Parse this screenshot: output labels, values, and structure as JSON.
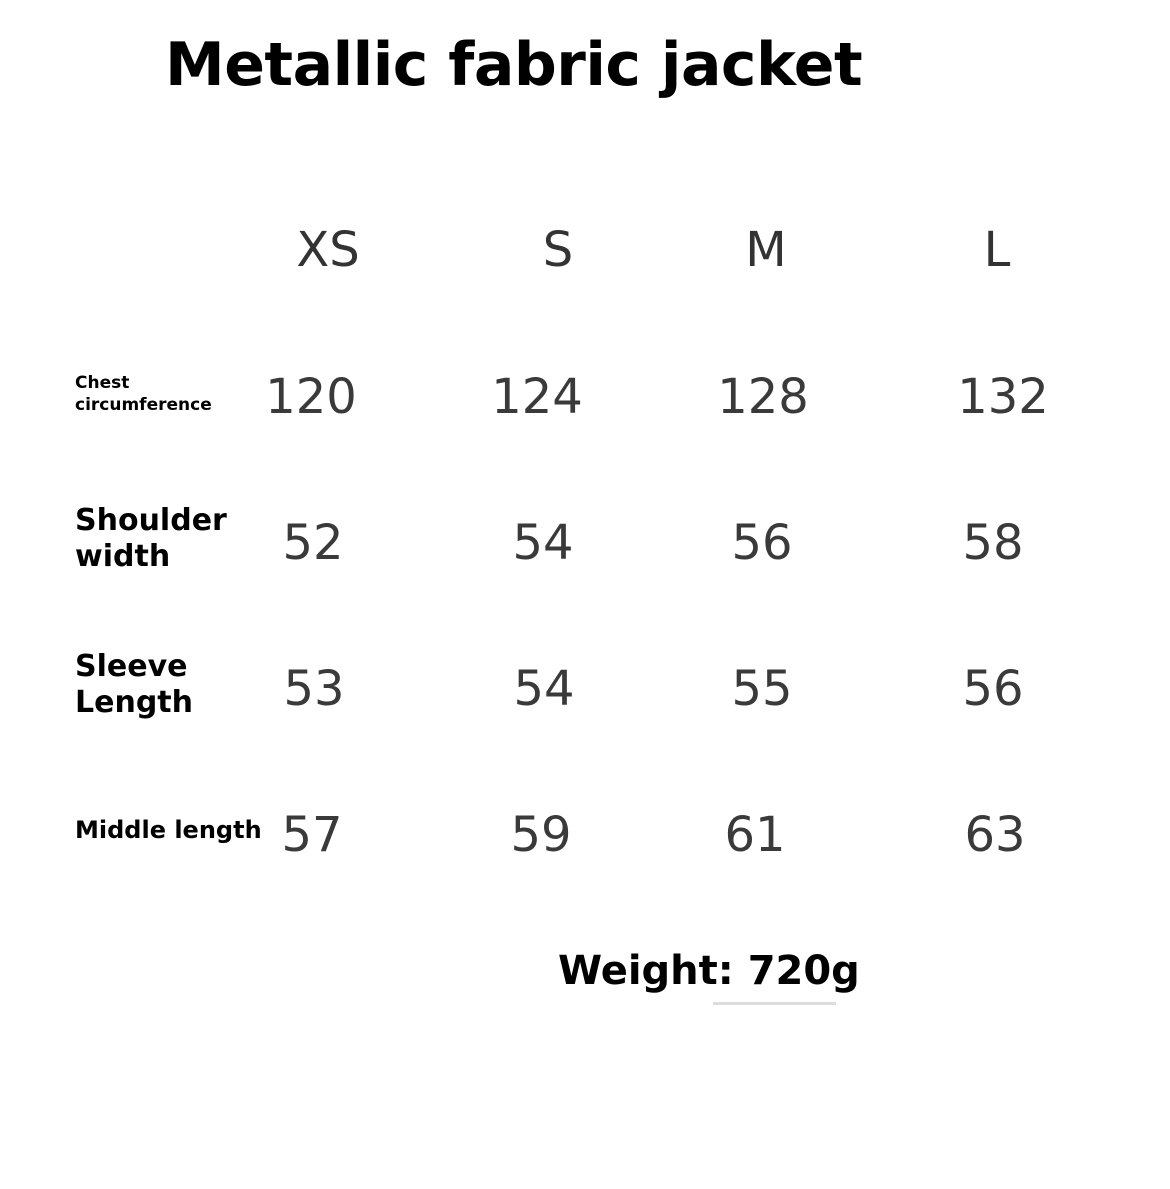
{
  "title": "Metallic fabric jacket",
  "sizes": [
    "XS",
    "S",
    "M",
    "L"
  ],
  "rows": [
    {
      "label": "Chest circumference",
      "values": [
        "120",
        "124",
        "128",
        "132"
      ]
    },
    {
      "label": "Shoulder width",
      "values": [
        "52",
        "54",
        "56",
        "58"
      ]
    },
    {
      "label": "Sleeve Length",
      "values": [
        "53",
        "54",
        "55",
        "56"
      ]
    },
    {
      "label": "Middle length",
      "values": [
        "57",
        "59",
        "61",
        "63"
      ]
    }
  ],
  "weight": "Weight: 720g"
}
